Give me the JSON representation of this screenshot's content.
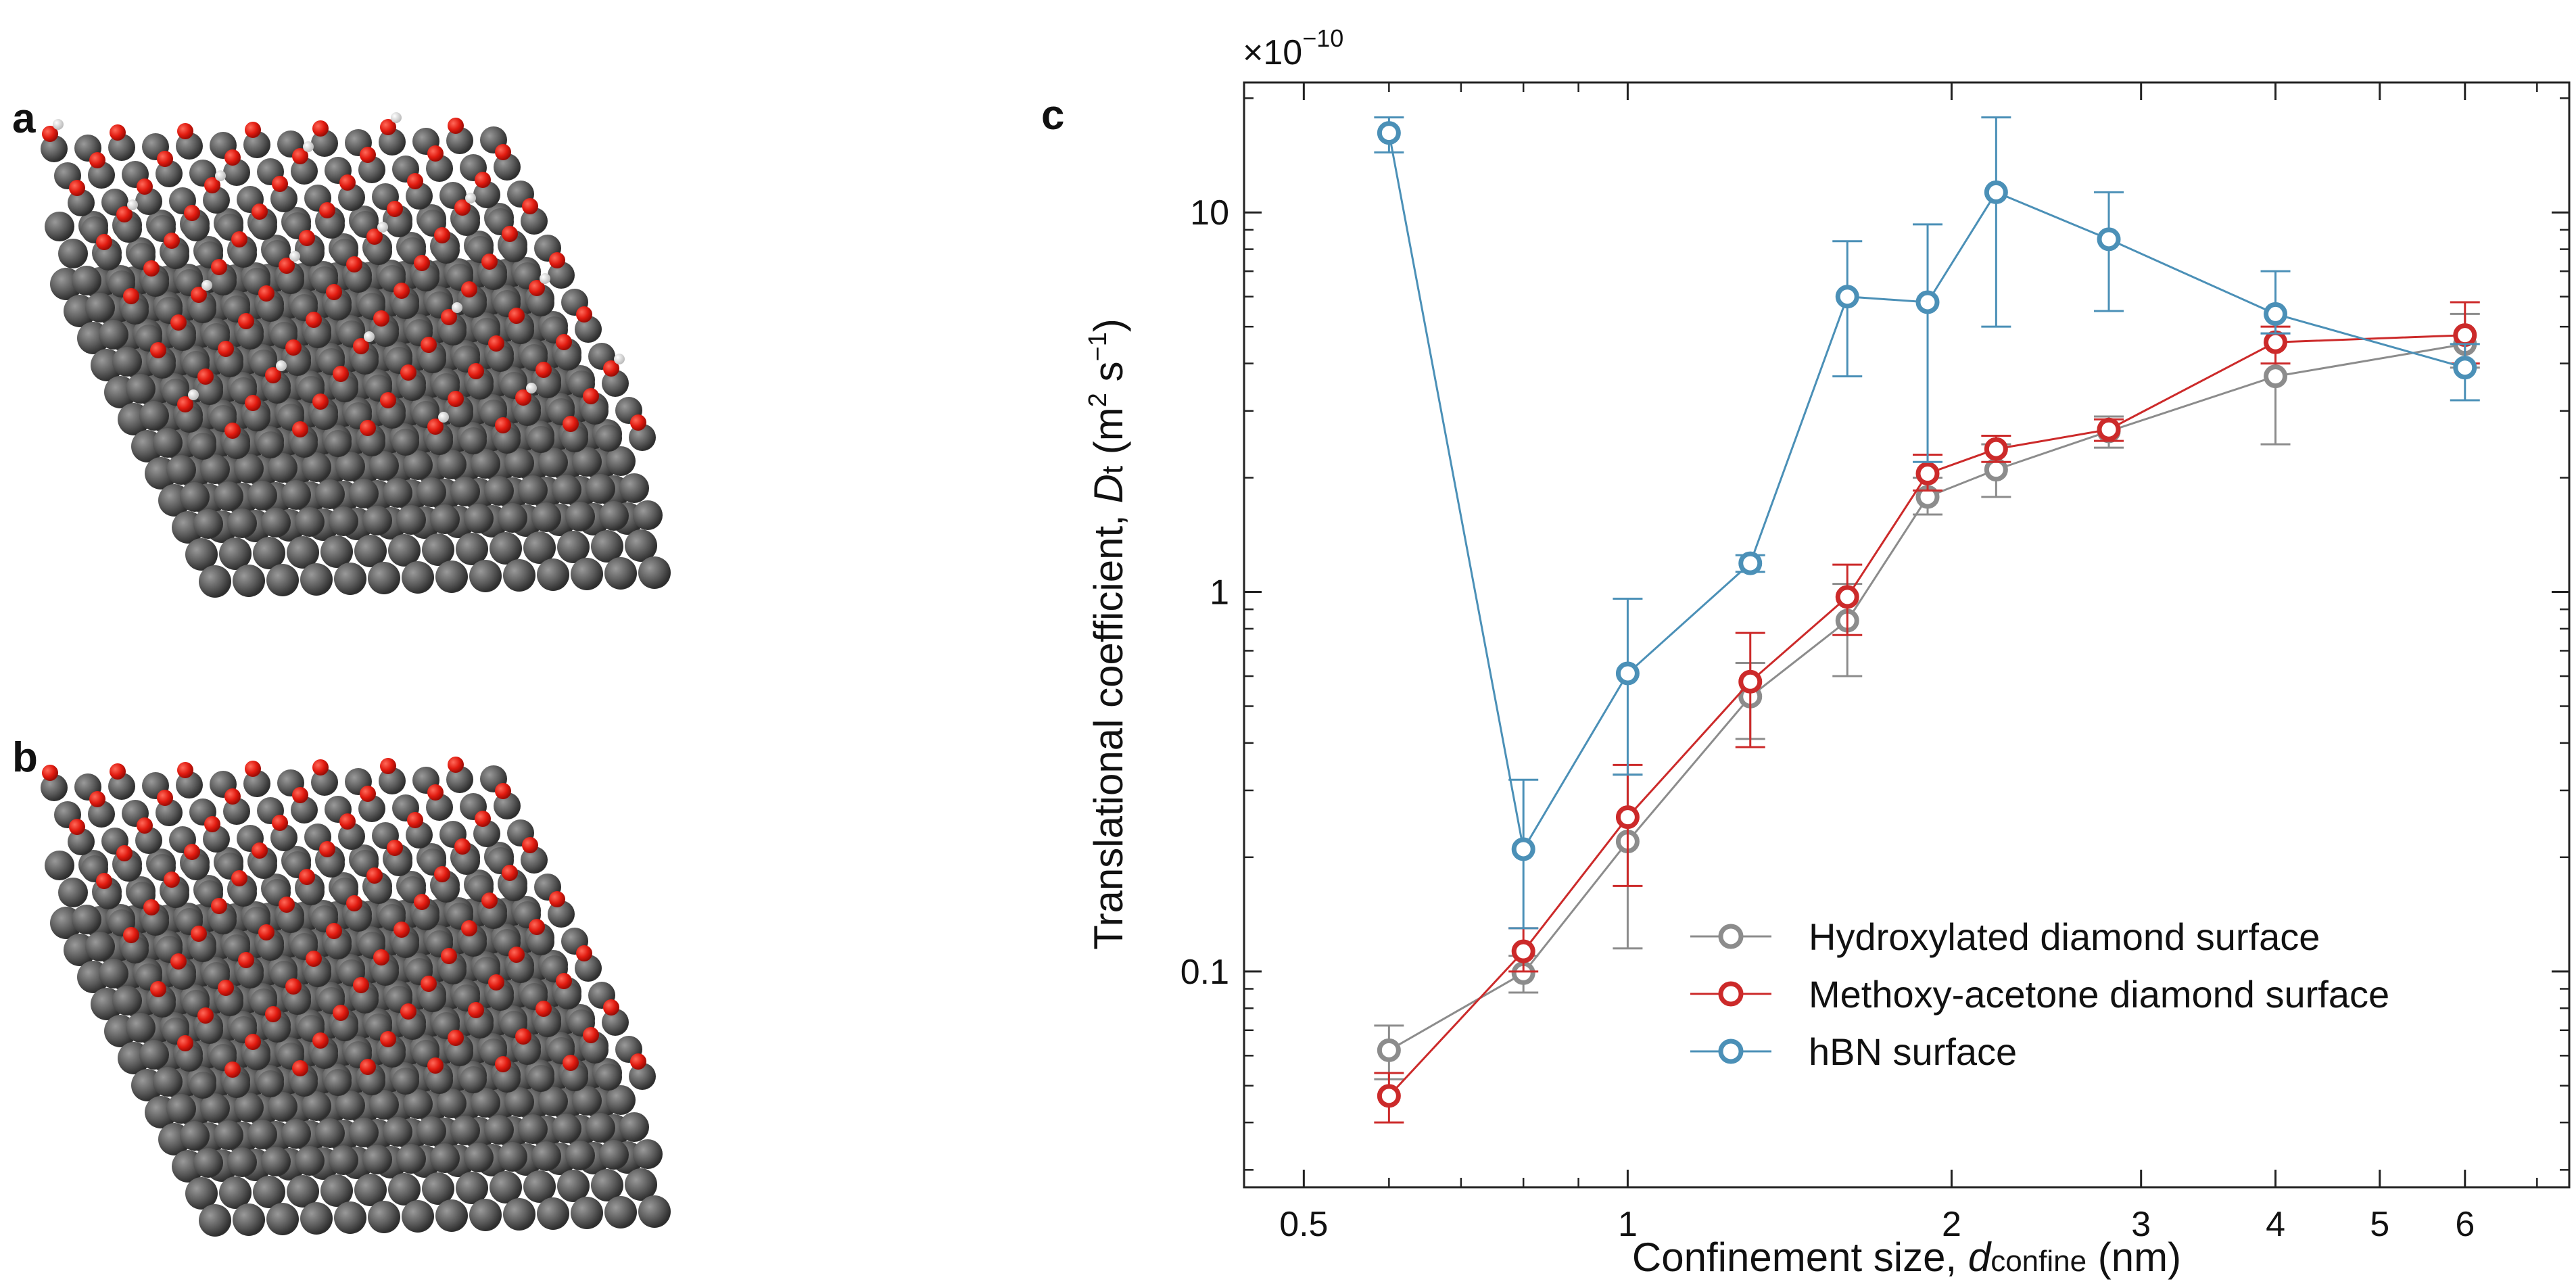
{
  "figure": {
    "panel_labels": [
      "a",
      "b",
      "c"
    ]
  },
  "chart_data": {
    "type": "scatter",
    "title": "",
    "xlabel_prefix": "Confinement size, ",
    "xlabel_var": "d",
    "xlabel_sub": "confine",
    "xlabel_suffix": " (nm)",
    "ylabel_prefix": "Translational coefficient, ",
    "ylabel_var": "D",
    "ylabel_sub": "t",
    "ylabel_units": " (m",
    "ylabel_exp1": "2",
    "ylabel_mid": " s",
    "ylabel_exp2": "−1",
    "ylabel_end": ")",
    "scale_base": "×10",
    "scale_exp": "−10",
    "x_scale": "log",
    "y_scale": "log",
    "xlim": [
      0.44,
      7.5
    ],
    "ylim": [
      0.027,
      22
    ],
    "x_ticks": [
      {
        "value": 0.5,
        "label": "0.5"
      },
      {
        "value": 1,
        "label": "1"
      },
      {
        "value": 2,
        "label": "2"
      },
      {
        "value": 3,
        "label": "3"
      },
      {
        "value": 4,
        "label": "4"
      },
      {
        "value": 5,
        "label": "5"
      },
      {
        "value": 6,
        "label": "6"
      }
    ],
    "y_ticks": [
      {
        "value": 0.1,
        "label": "0.1"
      },
      {
        "value": 1,
        "label": "1"
      },
      {
        "value": 10,
        "label": "10"
      }
    ],
    "x": [
      0.6,
      0.8,
      1.0,
      1.3,
      1.6,
      1.9,
      2.2,
      2.8,
      4.0,
      6.0
    ],
    "series": [
      {
        "name": "Hydroxylated diamond surface",
        "color": "#8c8c8c",
        "values": [
          0.062,
          0.099,
          0.22,
          0.53,
          0.84,
          1.78,
          2.1,
          2.65,
          3.7,
          4.5
        ],
        "err_low": [
          0.052,
          0.088,
          0.115,
          0.41,
          0.6,
          1.6,
          1.78,
          2.4,
          2.45,
          3.9
        ],
        "err_high": [
          0.072,
          0.11,
          0.33,
          0.65,
          1.05,
          2.0,
          2.45,
          2.9,
          4.8,
          5.4
        ]
      },
      {
        "name": "Methoxy-acetone diamond surface",
        "color": "#cc2a2a",
        "values": [
          0.047,
          0.113,
          0.255,
          0.58,
          0.97,
          2.05,
          2.38,
          2.68,
          4.55,
          4.75
        ],
        "err_low": [
          0.04,
          0.1,
          0.168,
          0.39,
          0.77,
          1.85,
          2.2,
          2.5,
          4.0,
          4.0
        ],
        "err_high": [
          0.054,
          0.13,
          0.35,
          0.78,
          1.18,
          2.3,
          2.58,
          2.85,
          5.0,
          5.8
        ]
      },
      {
        "name": "hBN surface",
        "color": "#4b90b7",
        "values": [
          16.2,
          0.21,
          0.61,
          1.19,
          6.0,
          5.8,
          11.3,
          8.5,
          5.4,
          3.9
        ],
        "err_low": [
          14.4,
          0.13,
          0.33,
          1.13,
          3.7,
          2.2,
          5.0,
          5.5,
          4.8,
          3.2
        ],
        "err_high": [
          17.8,
          0.32,
          0.96,
          1.25,
          8.4,
          9.3,
          17.8,
          11.3,
          7.0,
          4.5
        ]
      }
    ],
    "legend_position": "lower-right"
  }
}
